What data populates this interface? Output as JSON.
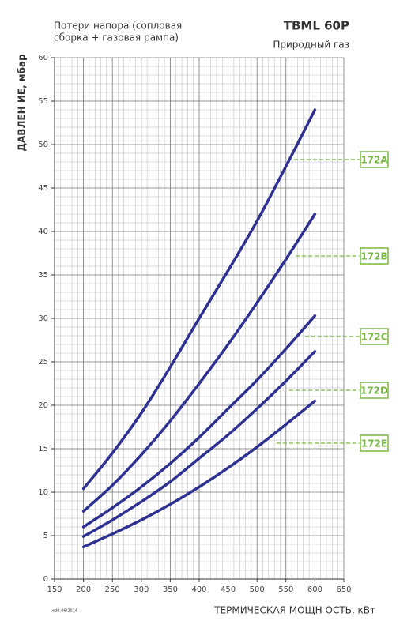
{
  "chart_data": {
    "type": "line",
    "title": "TBML 60P",
    "subtitle": "Природный газ",
    "annotation": [
      "Потери напора (сопловая",
      "сборка + газовая рампа)"
    ],
    "ylabel": "ДАВЛЕН ИЕ, мбар",
    "xlabel": "ТЕРМИЧЕСКАЯ МОЩН ОСТЬ, кВт",
    "footnote": "edit.06/2014",
    "x": [
      200,
      250,
      300,
      350,
      400,
      450,
      500,
      550,
      600
    ],
    "series": [
      {
        "name": "172A",
        "color": "#2e3192",
        "values": [
          10.4,
          14.5,
          19.1,
          24.4,
          30,
          35.5,
          41.2,
          47.5,
          54
        ]
      },
      {
        "name": "172B",
        "color": "#2e3192",
        "values": [
          7.8,
          10.8,
          14.3,
          18.2,
          22.5,
          27,
          31.8,
          36.8,
          42
        ]
      },
      {
        "name": "172C",
        "color": "#2e3192",
        "values": [
          6,
          8.2,
          10.6,
          13.3,
          16.3,
          19.6,
          22.9,
          26.5,
          30.3
        ]
      },
      {
        "name": "172D",
        "color": "#2e3192",
        "values": [
          4.9,
          6.8,
          8.9,
          11.2,
          13.9,
          16.6,
          19.6,
          22.8,
          26.2
        ]
      },
      {
        "name": "172E",
        "color": "#2e3192",
        "values": [
          3.7,
          5.2,
          6.8,
          8.6,
          10.6,
          12.8,
          15.2,
          17.8,
          20.5
        ]
      }
    ],
    "label_color": "#7ab648",
    "xlim": [
      150,
      650
    ],
    "ylim": [
      0,
      60
    ],
    "xticks": [
      150,
      200,
      250,
      300,
      350,
      400,
      450,
      500,
      550,
      600,
      650
    ],
    "yticks": [
      0,
      5,
      10,
      15,
      20,
      25,
      30,
      35,
      40,
      45,
      50,
      55,
      60
    ],
    "grid": true
  }
}
